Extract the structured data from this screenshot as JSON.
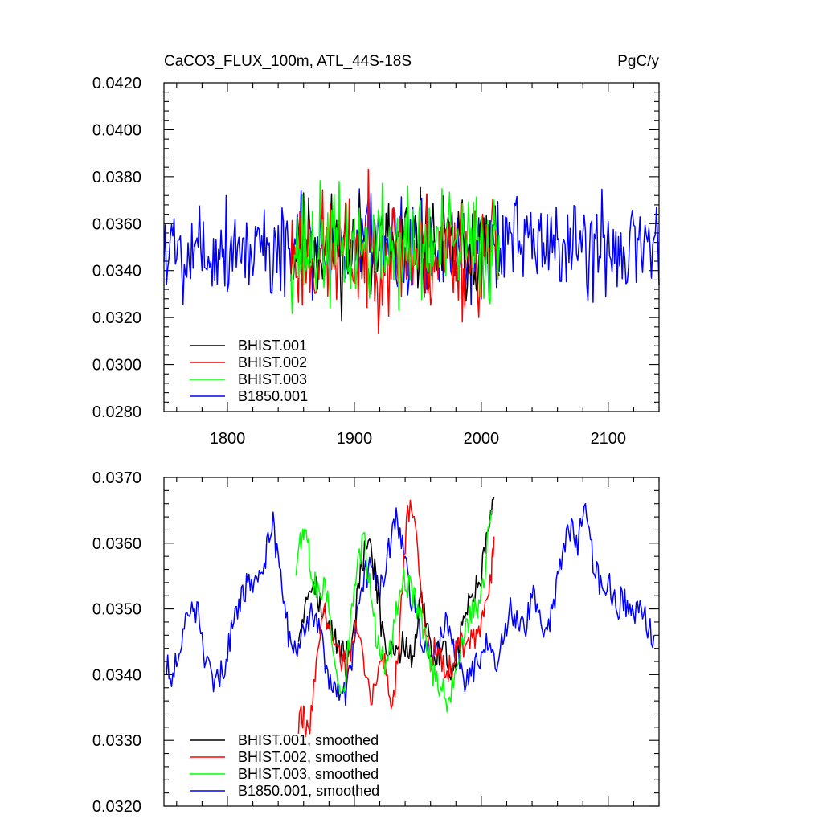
{
  "chart_data": [
    {
      "type": "line",
      "title_left": "CaCO3_FLUX_100m, ATL_44S-18S",
      "title_right": "PgC/y",
      "xlim": [
        1750,
        2140
      ],
      "ylim": [
        0.028,
        0.042
      ],
      "yticks": [
        0.028,
        0.03,
        0.032,
        0.034,
        0.036,
        0.038,
        0.04,
        0.042
      ],
      "ytick_labels": [
        "0.0280",
        "0.0300",
        "0.0320",
        "0.0340",
        "0.0360",
        "0.0380",
        "0.0400",
        "0.0420"
      ],
      "xticks": [
        1800,
        1900,
        2000,
        2100
      ],
      "xtick_labels": [
        "1800",
        "1900",
        "2000",
        "2100"
      ],
      "legend_position": "bottom-left",
      "series": [
        {
          "name": "BHIST.001",
          "color": "#000000",
          "start": 1850,
          "end": 2014,
          "mean": 0.035,
          "amp": 0.0023,
          "seed": 11
        },
        {
          "name": "BHIST.002",
          "color": "#ff0000",
          "start": 1850,
          "end": 2014,
          "mean": 0.0347,
          "amp": 0.0026,
          "seed": 23
        },
        {
          "name": "BHIST.003",
          "color": "#00ff00",
          "start": 1850,
          "end": 2014,
          "mean": 0.035,
          "amp": 0.0025,
          "seed": 37
        },
        {
          "name": "B1850.001",
          "color": "#0000ff",
          "start": 1750,
          "end": 2140,
          "mean": 0.035,
          "amp": 0.0022,
          "seed": 5
        }
      ]
    },
    {
      "type": "line",
      "xlim": [
        1750,
        2140
      ],
      "ylim": [
        0.032,
        0.037
      ],
      "yticks": [
        0.032,
        0.033,
        0.034,
        0.035,
        0.036,
        0.037
      ],
      "ytick_labels": [
        "0.0320",
        "0.0330",
        "0.0340",
        "0.0350",
        "0.0360",
        "0.0370"
      ],
      "xticks": [
        1800,
        1900,
        2000,
        2100
      ],
      "xtick_labels": [],
      "legend_position": "bottom-left",
      "series": [
        {
          "name": "BHIST.001, smoothed",
          "color": "#000000",
          "x": [
            1856,
            1862,
            1868,
            1874,
            1880,
            1886,
            1892,
            1898,
            1904,
            1910,
            1916,
            1922,
            1928,
            1934,
            1940,
            1946,
            1952,
            1958,
            1964,
            1970,
            1976,
            1982,
            1988,
            1994,
            2000,
            2006,
            2010
          ],
          "y": [
            0.0346,
            0.0352,
            0.0355,
            0.035,
            0.0347,
            0.0345,
            0.0343,
            0.0345,
            0.0355,
            0.036,
            0.0356,
            0.0346,
            0.0343,
            0.0343,
            0.0345,
            0.0342,
            0.0352,
            0.0347,
            0.0342,
            0.0345,
            0.034,
            0.0344,
            0.035,
            0.0352,
            0.0355,
            0.0362,
            0.0367
          ]
        },
        {
          "name": "BHIST.002, smoothed",
          "color": "#ff0000",
          "x": [
            1856,
            1860,
            1864,
            1870,
            1876,
            1882,
            1888,
            1894,
            1900,
            1906,
            1912,
            1918,
            1924,
            1930,
            1936,
            1942,
            1948,
            1954,
            1960,
            1966,
            1972,
            1978,
            1984,
            1990,
            1996,
            2002,
            2008,
            2010
          ],
          "y": [
            0.0332,
            0.0334,
            0.033,
            0.0343,
            0.0349,
            0.0348,
            0.0343,
            0.0341,
            0.0347,
            0.0343,
            0.0336,
            0.034,
            0.0343,
            0.0334,
            0.0348,
            0.0366,
            0.0362,
            0.035,
            0.0342,
            0.0345,
            0.034,
            0.0342,
            0.0345,
            0.0344,
            0.0346,
            0.0348,
            0.0355,
            0.0361
          ]
        },
        {
          "name": "BHIST.003, smoothed",
          "color": "#00ff00",
          "x": [
            1854,
            1858,
            1862,
            1866,
            1872,
            1878,
            1884,
            1890,
            1896,
            1902,
            1908,
            1914,
            1920,
            1926,
            1932,
            1938,
            1944,
            1950,
            1956,
            1962,
            1968,
            1974,
            1980,
            1986,
            1992,
            1998,
            2004,
            2008
          ],
          "y": [
            0.0356,
            0.0361,
            0.0362,
            0.0355,
            0.0352,
            0.0353,
            0.0343,
            0.0337,
            0.0345,
            0.0357,
            0.036,
            0.035,
            0.0343,
            0.034,
            0.0349,
            0.0355,
            0.0353,
            0.035,
            0.0345,
            0.034,
            0.0338,
            0.0336,
            0.0342,
            0.0345,
            0.0349,
            0.035,
            0.0358,
            0.0365
          ]
        },
        {
          "name": "B1850.001, smoothed",
          "color": "#0000ff",
          "x": [
            1752,
            1758,
            1764,
            1770,
            1776,
            1782,
            1788,
            1794,
            1800,
            1806,
            1812,
            1818,
            1824,
            1830,
            1836,
            1842,
            1848,
            1854,
            1860,
            1866,
            1872,
            1878,
            1884,
            1890,
            1896,
            1902,
            1908,
            1914,
            1920,
            1926,
            1932,
            1938,
            1944,
            1950,
            1956,
            1962,
            1968,
            1974,
            1980,
            1986,
            1992,
            1998,
            2004,
            2010,
            2016,
            2022,
            2028,
            2034,
            2040,
            2046,
            2052,
            2058,
            2064,
            2070,
            2076,
            2082,
            2088,
            2094,
            2100,
            2106,
            2112,
            2118,
            2124,
            2130,
            2136
          ],
          "y": [
            0.0341,
            0.034,
            0.0346,
            0.0349,
            0.035,
            0.0343,
            0.0338,
            0.034,
            0.0343,
            0.0349,
            0.0352,
            0.0355,
            0.0354,
            0.0358,
            0.0363,
            0.0354,
            0.0346,
            0.0343,
            0.0346,
            0.0349,
            0.0348,
            0.0341,
            0.0338,
            0.0335,
            0.034,
            0.0348,
            0.0355,
            0.0356,
            0.0352,
            0.0358,
            0.0364,
            0.036,
            0.0352,
            0.0348,
            0.0344,
            0.0342,
            0.0346,
            0.0348,
            0.0344,
            0.0338,
            0.034,
            0.0342,
            0.0345,
            0.0342,
            0.0344,
            0.035,
            0.0348,
            0.0346,
            0.0352,
            0.0349,
            0.0346,
            0.0352,
            0.0358,
            0.0362,
            0.036,
            0.0365,
            0.0357,
            0.0353,
            0.0355,
            0.035,
            0.0352,
            0.0349,
            0.0351,
            0.0348,
            0.0346
          ]
        }
      ]
    }
  ]
}
